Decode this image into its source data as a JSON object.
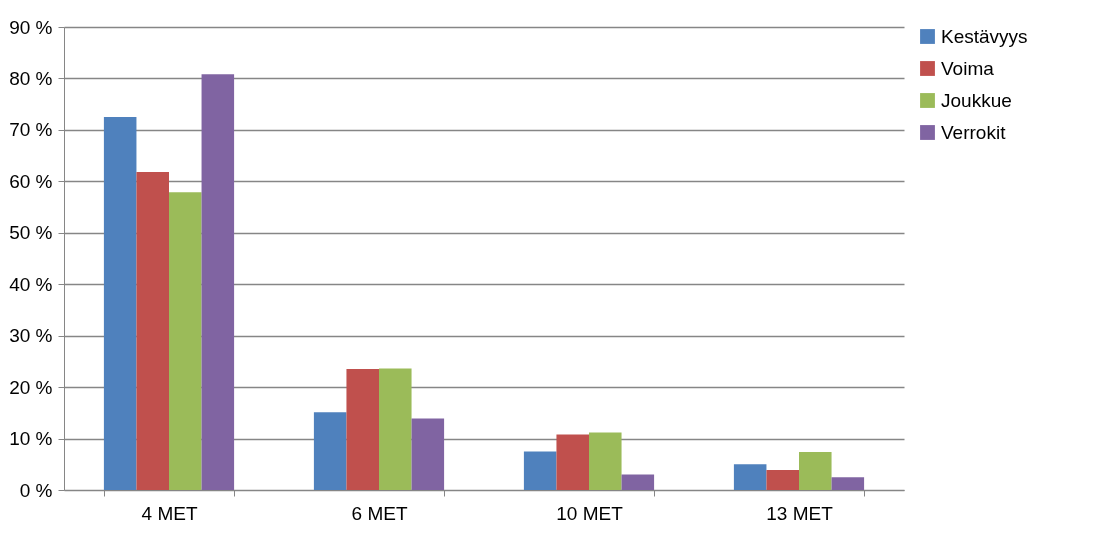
{
  "chart_data": {
    "type": "bar",
    "categories": [
      "4 MET",
      "6 MET",
      "10 MET",
      "13 MET"
    ],
    "series": [
      {
        "name": "Kestävyys",
        "color": "#4f81bd",
        "values": [
          72.5,
          15.1,
          7.5,
          5.0
        ]
      },
      {
        "name": "Voima",
        "color": "#c0504d",
        "values": [
          61.8,
          23.5,
          10.8,
          3.9
        ]
      },
      {
        "name": "Joukkue",
        "color": "#9bbb59",
        "values": [
          57.9,
          23.6,
          11.2,
          7.4
        ]
      },
      {
        "name": "Verrokit",
        "color": "#8064a2",
        "values": [
          80.8,
          13.9,
          3.0,
          2.5
        ]
      }
    ],
    "ylim": [
      0,
      90
    ],
    "yticks": [
      {
        "value": 0,
        "label": "0 %"
      },
      {
        "value": 10,
        "label": "10 %"
      },
      {
        "value": 20,
        "label": "20 %"
      },
      {
        "value": 30,
        "label": "30 %"
      },
      {
        "value": 40,
        "label": "40 %"
      },
      {
        "value": 50,
        "label": "50 %"
      },
      {
        "value": 60,
        "label": "60 %"
      },
      {
        "value": 70,
        "label": "70 %"
      },
      {
        "value": 80,
        "label": "80 %"
      },
      {
        "value": 90,
        "label": "90 %"
      }
    ],
    "grid": "y",
    "legend": "right"
  }
}
